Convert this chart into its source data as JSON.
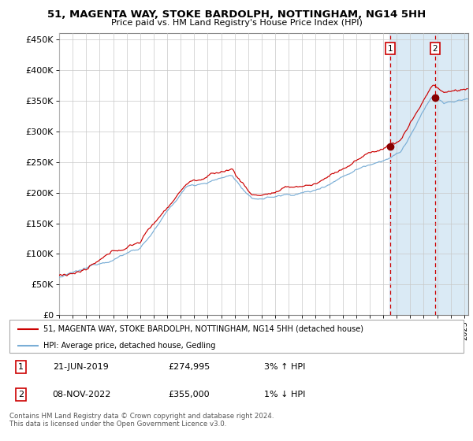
{
  "title": "51, MAGENTA WAY, STOKE BARDOLPH, NOTTINGHAM, NG14 5HH",
  "subtitle": "Price paid vs. HM Land Registry's House Price Index (HPI)",
  "legend_line1": "51, MAGENTA WAY, STOKE BARDOLPH, NOTTINGHAM, NG14 5HH (detached house)",
  "legend_line2": "HPI: Average price, detached house, Gedling",
  "annotation1": {
    "num": "1",
    "date": "21-JUN-2019",
    "price": "£274,995",
    "pct": "3% ↑ HPI"
  },
  "annotation2": {
    "num": "2",
    "date": "08-NOV-2022",
    "price": "£355,000",
    "pct": "1% ↓ HPI"
  },
  "footer": "Contains HM Land Registry data © Crown copyright and database right 2024.\nThis data is licensed under the Open Government Licence v3.0.",
  "hpi_color": "#7aaed6",
  "price_color": "#cc0000",
  "marker_color": "#880000",
  "sale1_date_year": 2019.47,
  "sale1_price": 274995,
  "sale2_date_year": 2022.86,
  "sale2_price": 355000,
  "shade_color": "#daeaf5",
  "ylim": [
    0,
    460000
  ],
  "xlim_start": 1995.0,
  "xlim_end": 2025.3,
  "fig_width": 6.0,
  "fig_height": 5.6,
  "dpi": 100
}
